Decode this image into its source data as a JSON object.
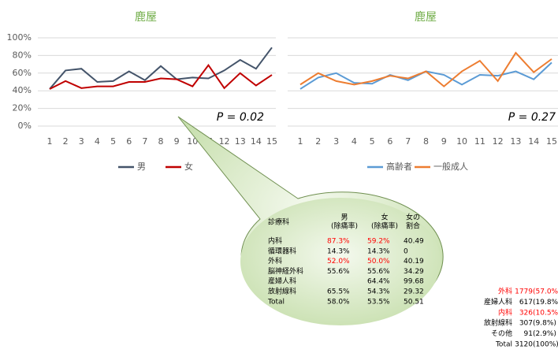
{
  "chart_data": [
    {
      "type": "line",
      "title": "鹿屋",
      "x": [
        1,
        2,
        3,
        4,
        5,
        6,
        7,
        8,
        9,
        10,
        11,
        12,
        13,
        14,
        15
      ],
      "xlim": [
        1,
        15
      ],
      "ylim": [
        0,
        100
      ],
      "yticks": [
        {
          "value": 0,
          "label": "0%"
        },
        {
          "value": 20,
          "label": "20%"
        },
        {
          "value": 40,
          "label": "40%"
        },
        {
          "value": 60,
          "label": "60%"
        },
        {
          "value": 80,
          "label": "80%"
        },
        {
          "value": 100,
          "label": "100%"
        }
      ],
      "grid": true,
      "legend": "bottom",
      "annotation": "P = 0.02",
      "series": [
        {
          "name": "男",
          "color": "#44546a",
          "values": [
            42,
            63,
            65,
            50,
            51,
            62,
            52,
            68,
            53,
            55,
            54,
            63,
            75,
            65,
            89
          ]
        },
        {
          "name": "女",
          "color": "#c00000",
          "values": [
            42,
            51,
            43,
            45,
            45,
            50,
            50,
            54,
            53,
            45,
            69,
            43,
            60,
            46,
            58
          ]
        }
      ]
    },
    {
      "type": "line",
      "title": "鹿屋",
      "x": [
        1,
        2,
        3,
        4,
        5,
        6,
        7,
        8,
        9,
        10,
        11,
        12,
        13,
        14,
        15
      ],
      "xlim": [
        1,
        15
      ],
      "ylim": [
        0,
        100
      ],
      "grid": true,
      "legend": "bottom",
      "annotation": "P = 0.27",
      "series": [
        {
          "name": "高齢者",
          "color": "#5b9bd5",
          "values": [
            42,
            55,
            60,
            49,
            48,
            58,
            52,
            62,
            58,
            47,
            58,
            57,
            62,
            53,
            72
          ]
        },
        {
          "name": "一般成人",
          "color": "#ed7d31",
          "values": [
            47,
            60,
            51,
            47,
            51,
            57,
            54,
            62,
            45,
            62,
            74,
            51,
            83,
            61,
            76
          ]
        }
      ]
    }
  ],
  "callout_table": {
    "columns": [
      "診療科",
      [
        "男",
        "(除痛率)"
      ],
      [
        "女",
        "(除痛率)"
      ],
      [
        "女の",
        "割合"
      ]
    ],
    "rows": [
      [
        "内科",
        "87.3%",
        "59.2%",
        "40.49"
      ],
      [
        "循環器科",
        "14.3%",
        "14.3%",
        "0"
      ],
      [
        "外科",
        "52.0%",
        "50.0%",
        "40.19"
      ],
      [
        "脳神経外科",
        "55.6%",
        "55.6%",
        "34.29"
      ],
      [
        "産婦人科",
        null,
        "64.4%",
        "99.68"
      ],
      [
        "放射線科",
        "65.5%",
        "54.3%",
        "29.32"
      ],
      [
        "Total",
        "58.0%",
        "53.5%",
        "50.51"
      ]
    ],
    "highlight_rows": [
      0,
      2
    ],
    "highlight_color": "#ff0000"
  },
  "count_table": {
    "rows": [
      [
        "外科",
        "1779",
        "(57.0%)"
      ],
      [
        "産婦人科",
        "617",
        "(19.8%)"
      ],
      [
        "内科",
        "326",
        "(10.5%)"
      ],
      [
        "放射線科",
        "307",
        "(9.8%)"
      ],
      [
        "その他",
        "91",
        "(2.9%)"
      ],
      [
        "Total",
        "3120",
        "(100%)"
      ]
    ],
    "highlight_rows": [
      0,
      2
    ],
    "highlight_color": "#ff0000"
  }
}
